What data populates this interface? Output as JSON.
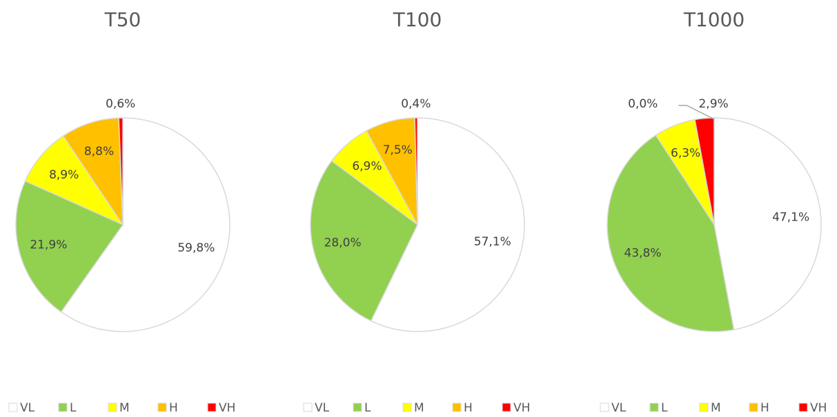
{
  "chart_data": [
    {
      "type": "pie",
      "title": "T50",
      "categories": [
        "VL",
        "L",
        "M",
        "H",
        "VH"
      ],
      "values": [
        59.8,
        21.9,
        8.9,
        8.8,
        0.6
      ],
      "value_labels": [
        "59,8%",
        "21,9%",
        "8,9%",
        "8,8%",
        "0,6%"
      ],
      "colors": [
        "#ffffff",
        "#92d050",
        "#ffff00",
        "#ffc000",
        "#ff0000"
      ]
    },
    {
      "type": "pie",
      "title": "T100",
      "categories": [
        "VL",
        "L",
        "M",
        "H",
        "VH"
      ],
      "values": [
        57.1,
        28.0,
        6.9,
        7.5,
        0.4
      ],
      "value_labels": [
        "57,1%",
        "28,0%",
        "6,9%",
        "7,5%",
        "0,4%"
      ],
      "colors": [
        "#ffffff",
        "#92d050",
        "#ffff00",
        "#ffc000",
        "#ff0000"
      ]
    },
    {
      "type": "pie",
      "title": "T1000",
      "categories": [
        "VL",
        "L",
        "M",
        "H",
        "VH"
      ],
      "values": [
        47.1,
        43.8,
        6.3,
        0.0,
        2.9
      ],
      "value_labels": [
        "47,1%",
        "43,8%",
        "6,3%",
        "0,0%",
        "2,9%"
      ],
      "colors": [
        "#ffffff",
        "#92d050",
        "#ffff00",
        "#ffc000",
        "#ff0000"
      ]
    }
  ]
}
